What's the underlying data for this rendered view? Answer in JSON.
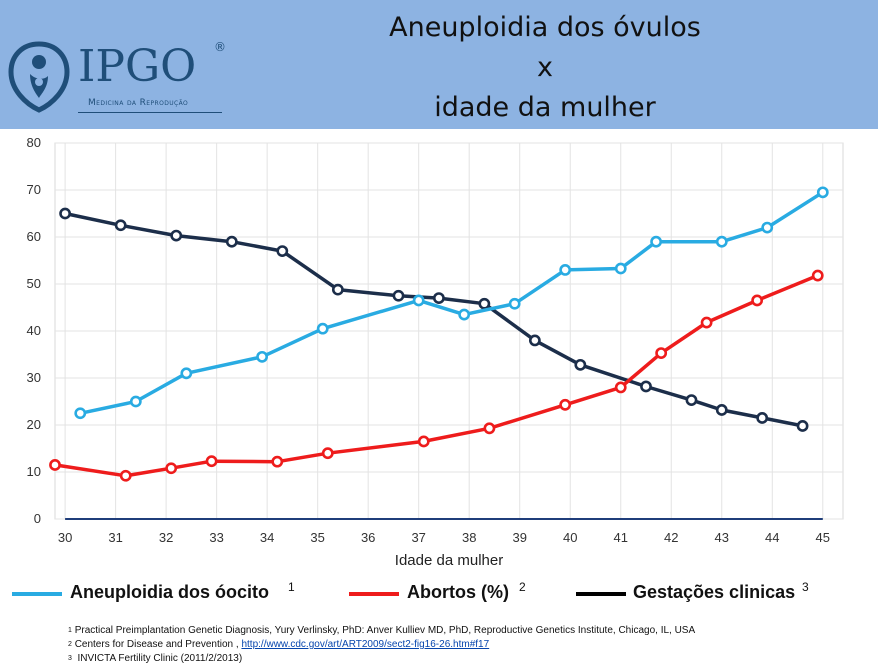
{
  "header": {
    "logo": {
      "name": "IPGO",
      "registered": "®",
      "tagline": "Medicina da Reprodução"
    },
    "title_lines": [
      "Aneuploidia dos óvulos",
      "x",
      "idade da mulher"
    ],
    "background": "#8db3e2"
  },
  "chart_data": {
    "type": "line",
    "xlabel": "Idade da mulher",
    "ylabel": "",
    "xlim": [
      29.8,
      45.4
    ],
    "ylim": [
      0,
      80
    ],
    "x_ticks": [
      30,
      31,
      32,
      33,
      34,
      35,
      36,
      37,
      38,
      39,
      40,
      41,
      42,
      43,
      44,
      45
    ],
    "y_ticks": [
      0,
      10,
      20,
      30,
      40,
      50,
      60,
      70,
      80
    ],
    "grid": true,
    "legend_position": "bottom",
    "series": [
      {
        "name": "Aneuploidia dos óocito",
        "footnote": "1",
        "color": "#29abe2",
        "x": [
          30.3,
          31.4,
          32.4,
          33.9,
          35.1,
          37.0,
          37.9,
          38.9,
          39.9,
          41.0,
          41.7,
          43.0,
          43.9,
          45.0
        ],
        "y": [
          22.5,
          25,
          31,
          34.5,
          40.5,
          46.5,
          43.5,
          45.8,
          53,
          53.3,
          59,
          59,
          62,
          69.5
        ]
      },
      {
        "name": "Abortos (%)",
        "footnote": "2",
        "color": "#ee1c1c",
        "x": [
          29.8,
          31.2,
          32.1,
          32.9,
          34.2,
          35.2,
          37.1,
          38.4,
          39.9,
          41.0,
          41.8,
          42.7,
          43.7,
          44.9
        ],
        "y": [
          11.5,
          9.2,
          10.8,
          12.3,
          12.2,
          14,
          16.5,
          19.3,
          24.3,
          28,
          35.3,
          41.8,
          46.5,
          51.8
        ]
      },
      {
        "name": "Gestações clinicas",
        "footnote": "3",
        "color": "#1c2e4a",
        "x": [
          30.0,
          31.1,
          32.2,
          33.3,
          34.3,
          35.4,
          36.6,
          37.4,
          38.3,
          39.3,
          40.2,
          41.5,
          42.4,
          43.0,
          43.8,
          44.6
        ],
        "y": [
          65,
          62.5,
          60.3,
          59,
          57,
          48.8,
          47.5,
          47,
          45.8,
          38,
          32.8,
          28.2,
          25.3,
          23.2,
          21.5,
          19.8
        ]
      },
      {
        "name": "",
        "color": "#1f3d7a",
        "x": [
          30.0,
          45.0
        ],
        "y": [
          0,
          0
        ],
        "markers": false
      }
    ]
  },
  "legend": [
    {
      "label": "Aneuploidia dos óocito",
      "sup": "1",
      "color": "#29abe2"
    },
    {
      "label": "Abortos (%)",
      "sup": "2",
      "color": "#ee1c1c"
    },
    {
      "label": "Gestações clinicas",
      "sup": "3",
      "color": "#000000"
    }
  ],
  "footnotes": [
    {
      "num": "1",
      "text": "Practical Preimplantation Genetic Diagnosis, Yury Verlinsky, PhD: Anver Kulliev MD, PhD, Reproductive Genetics Institute, Chicago, IL, USA"
    },
    {
      "num": "2",
      "text": "Centers for Disease and Prevention ,",
      "link": "http://www.cdc.gov/art/ART2009/sect2-fig16-26.htm#f17"
    },
    {
      "num": "3",
      "text": "INVICTA Fertility Clinic (2011/2/2013)"
    }
  ]
}
